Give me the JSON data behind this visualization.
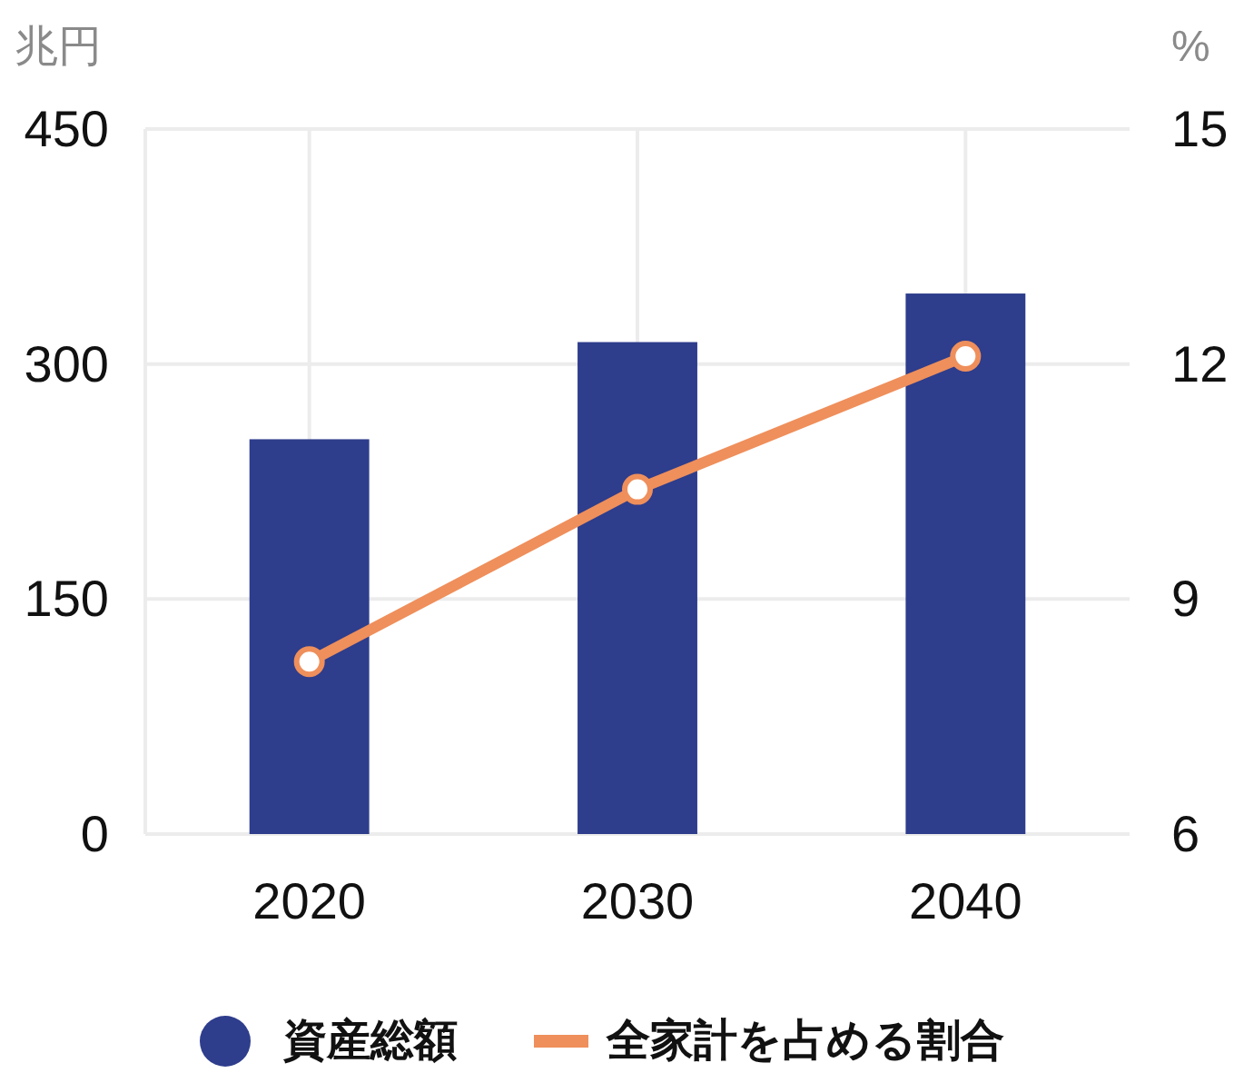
{
  "chart_data": {
    "type": "bar",
    "categories": [
      "2020",
      "2030",
      "2040"
    ],
    "series": [
      {
        "name": "資産総額",
        "color": "#2e3d8c",
        "values": [
          252,
          314,
          345
        ]
      },
      {
        "name": "全家計を占める割合",
        "type": "line",
        "axis": "y2",
        "color": "#ef8f5b",
        "marker": "circle",
        "values": [
          8.2,
          10.4,
          12.1
        ]
      }
    ],
    "ylabel": "兆円",
    "y2label": "%",
    "ylim": [
      0,
      450
    ],
    "yticks": [
      0,
      150,
      300,
      450
    ],
    "y2lim": [
      6,
      15
    ],
    "y2ticks": [
      6,
      9,
      12,
      15
    ],
    "grid": true,
    "legend": "bottom"
  }
}
